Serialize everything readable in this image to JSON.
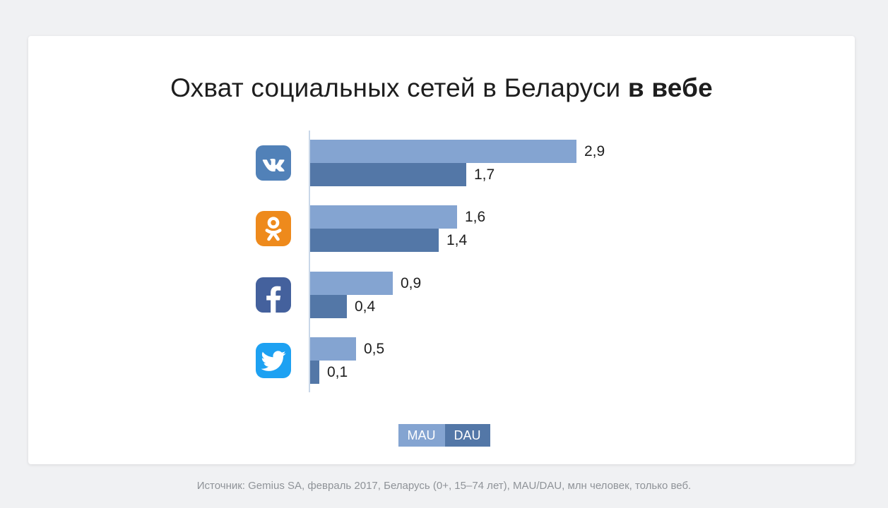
{
  "page": {
    "background": "#f0f1f3"
  },
  "title": {
    "regular": "Охват социальных сетей в Беларуси",
    "bold": "в вебе"
  },
  "chart_data": {
    "type": "bar",
    "orientation": "horizontal",
    "title": "Охват социальных сетей в Беларуси в вебе",
    "categories": [
      "ВКонтакте",
      "Одноклассники",
      "Facebook",
      "Twitter"
    ],
    "series": [
      {
        "name": "MAU",
        "color": "#84a4d1",
        "values": [
          2.9,
          1.6,
          0.9,
          0.5
        ],
        "labels": [
          "2,9",
          "1,6",
          "0,9",
          "0,5"
        ]
      },
      {
        "name": "DAU",
        "color": "#5377a7",
        "values": [
          1.7,
          1.4,
          0.4,
          0.1
        ],
        "labels": [
          "1,7",
          "1,4",
          "0,4",
          "0,1"
        ]
      }
    ],
    "xlim": [
      0,
      3.0
    ],
    "unit": "млн человек",
    "grid": false,
    "legend_position": "bottom-center",
    "axis_color": "#c9d7e8"
  },
  "icons": [
    {
      "name": "vk-icon",
      "network": "ВКонтакте",
      "color": "#5181b8"
    },
    {
      "name": "ok-icon",
      "network": "Одноклассники",
      "color": "#ee8a1c"
    },
    {
      "name": "facebook-icon",
      "network": "Facebook",
      "color": "#44619d"
    },
    {
      "name": "twitter-icon",
      "network": "Twitter",
      "color": "#1da1f2"
    }
  ],
  "legend": {
    "items": [
      {
        "label": "MAU",
        "color": "#84a4d1"
      },
      {
        "label": "DAU",
        "color": "#5377a7"
      }
    ]
  },
  "footer": {
    "source_text": "Источник: Gemius SA, февраль 2017, Беларусь (0+, 15–74 лет), MAU/DAU, млн человек, только веб."
  }
}
